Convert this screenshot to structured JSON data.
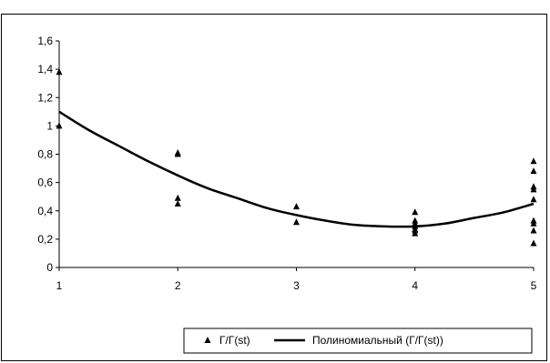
{
  "chart_data": {
    "type": "scatter",
    "title": "",
    "xlabel": "",
    "ylabel": "",
    "xlim": [
      1,
      5
    ],
    "ylim": [
      0,
      1.6
    ],
    "x_ticks": [
      "1",
      "2",
      "3",
      "4",
      "5"
    ],
    "y_ticks": [
      "0",
      "0,2",
      "0,4",
      "0,6",
      "0,8",
      "1",
      "1,2",
      "1,4",
      "1,6"
    ],
    "grid": false,
    "legend_position": "bottom-right",
    "series": [
      {
        "name": "Г/Г(st)",
        "kind": "scatter",
        "marker": "triangle",
        "color": "#000000",
        "points": [
          [
            1,
            1.38
          ],
          [
            1,
            1.0
          ],
          [
            2,
            0.81
          ],
          [
            2,
            0.8
          ],
          [
            2,
            0.49
          ],
          [
            2,
            0.45
          ],
          [
            3,
            0.43
          ],
          [
            3,
            0.32
          ],
          [
            4,
            0.39
          ],
          [
            4,
            0.33
          ],
          [
            4,
            0.31
          ],
          [
            4,
            0.29
          ],
          [
            4,
            0.27
          ],
          [
            4,
            0.26
          ],
          [
            4,
            0.24
          ],
          [
            5,
            0.75
          ],
          [
            5,
            0.68
          ],
          [
            5,
            0.57
          ],
          [
            5,
            0.55
          ],
          [
            5,
            0.48
          ],
          [
            5,
            0.33
          ],
          [
            5,
            0.31
          ],
          [
            5,
            0.26
          ],
          [
            5,
            0.17
          ]
        ]
      },
      {
        "name": "Полиномиальный (Г/Г(st))",
        "kind": "trendline",
        "color": "#000000",
        "x": [
          1,
          1.25,
          1.5,
          1.75,
          2,
          2.25,
          2.5,
          2.75,
          3,
          3.25,
          3.5,
          3.75,
          4,
          4.25,
          4.5,
          4.75,
          5
        ],
        "y": [
          1.1,
          0.97,
          0.86,
          0.75,
          0.65,
          0.56,
          0.49,
          0.42,
          0.37,
          0.33,
          0.3,
          0.29,
          0.29,
          0.31,
          0.35,
          0.39,
          0.45
        ]
      }
    ]
  }
}
